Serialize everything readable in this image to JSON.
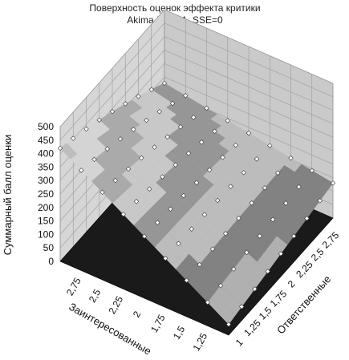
{
  "chart_data": {
    "type": "surface3d",
    "title": "Поверхность оценок эффекта критики",
    "subtitle": "Akima  III, r²=1, SSE=0",
    "zlabel": "Суммарный балл оценки",
    "xlabel": "Заинтересованные",
    "ylabel": "Ответственные",
    "x_ticks": [
      "2,75",
      "2,5",
      "2,25",
      "2",
      "1,75",
      "1,5",
      "1,25"
    ],
    "y_ticks": [
      "1",
      "1,25",
      "1,5",
      "1,75",
      "2",
      "2,25",
      "2,5",
      "2,75"
    ],
    "z_ticks": [
      "0",
      "50",
      "100",
      "150",
      "200",
      "250",
      "300",
      "350",
      "400",
      "450",
      "500"
    ],
    "x_range": [
      1,
      3
    ],
    "y_range": [
      1,
      3
    ],
    "z_range": [
      0,
      500
    ],
    "grid": true,
    "surface_color": "gray shaded bands",
    "point_color": "#ffffff"
  }
}
